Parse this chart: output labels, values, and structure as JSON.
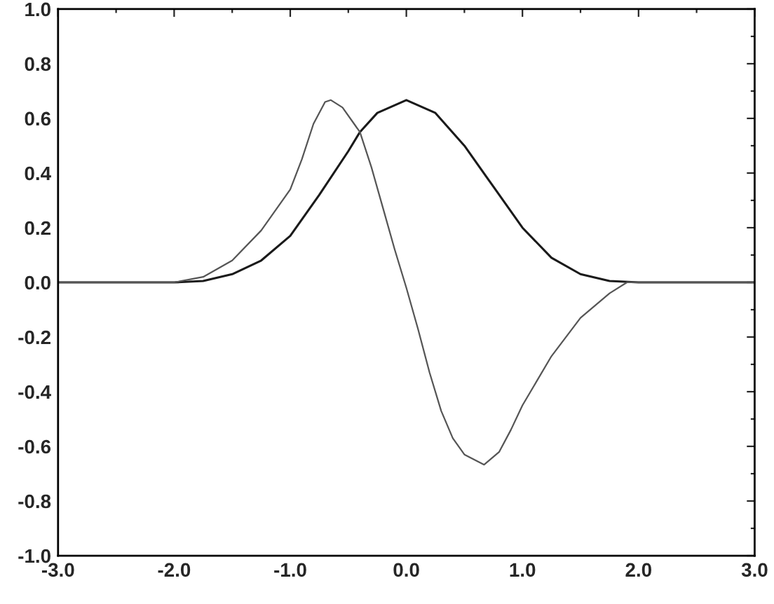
{
  "chart_data": {
    "type": "line",
    "xlim": [
      -3.0,
      3.0
    ],
    "ylim": [
      -1.0,
      1.0
    ],
    "xticks": [
      {
        "value": -3,
        "label": "-3.0"
      },
      {
        "value": -2,
        "label": "-2.0"
      },
      {
        "value": -1,
        "label": "-1.0"
      },
      {
        "value": 0,
        "label": "0.0"
      },
      {
        "value": 1,
        "label": "1.0"
      },
      {
        "value": 2,
        "label": "2.0"
      },
      {
        "value": 3,
        "label": "3.0"
      }
    ],
    "yticks": [
      {
        "value": -1,
        "label": "-1.0"
      },
      {
        "value": -0.8,
        "label": "-0.8"
      },
      {
        "value": -0.6,
        "label": "-0.6"
      },
      {
        "value": -0.4,
        "label": "-0.4"
      },
      {
        "value": -0.2,
        "label": "-0.2"
      },
      {
        "value": 0,
        "label": "0.0"
      },
      {
        "value": 0.2,
        "label": "0.2"
      },
      {
        "value": 0.4,
        "label": "0.4"
      },
      {
        "value": 0.6,
        "label": "0.6"
      },
      {
        "value": 0.8,
        "label": "0.8"
      },
      {
        "value": 1,
        "label": "1.0"
      }
    ],
    "grid": false,
    "legend": false,
    "marker": "none",
    "line_style": "solid",
    "series": [
      {
        "color": "#1a1a1a",
        "x": [
          -3,
          -2,
          -1.75,
          -1.5,
          -1.25,
          -1.0,
          -0.75,
          -0.5,
          -0.4,
          -0.25,
          0,
          0.25,
          0.5,
          0.75,
          1.0,
          1.25,
          1.5,
          1.75,
          2,
          3
        ],
        "values": [
          0,
          0,
          0.005,
          0.03,
          0.08,
          0.17,
          0.32,
          0.48,
          0.55,
          0.62,
          0.667,
          0.62,
          0.5,
          0.35,
          0.2,
          0.09,
          0.03,
          0.005,
          0,
          0
        ]
      },
      {
        "color": "#555555",
        "x": [
          -3,
          -2,
          -1.75,
          -1.5,
          -1.25,
          -1.0,
          -0.9,
          -0.8,
          -0.7,
          -0.65,
          -0.55,
          -0.45,
          -0.4,
          -0.3,
          -0.2,
          -0.1,
          0,
          0.1,
          0.2,
          0.3,
          0.4,
          0.5,
          0.67,
          0.8,
          0.9,
          1.0,
          1.25,
          1.5,
          1.75,
          1.9,
          3
        ],
        "values": [
          0,
          0,
          0.02,
          0.08,
          0.19,
          0.34,
          0.45,
          0.58,
          0.66,
          0.667,
          0.64,
          0.58,
          0.55,
          0.42,
          0.27,
          0.12,
          -0.02,
          -0.17,
          -0.33,
          -0.47,
          -0.57,
          -0.63,
          -0.667,
          -0.62,
          -0.54,
          -0.45,
          -0.27,
          -0.13,
          -0.04,
          0,
          0
        ]
      }
    ]
  }
}
